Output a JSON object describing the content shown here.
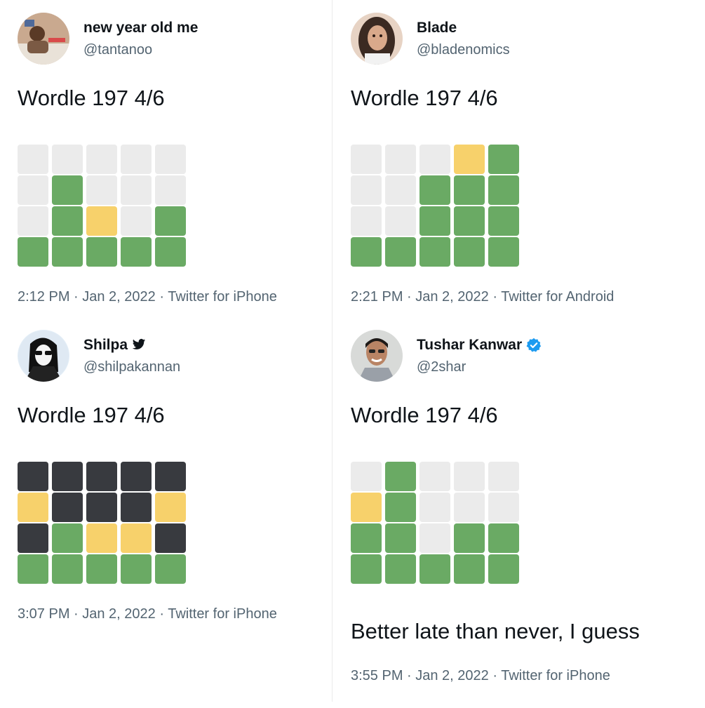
{
  "colors": {
    "green": "#6aaa64",
    "yellow": "#f7d16b",
    "gray": "#ebebeb",
    "dark": "#383a3f",
    "verified_blue": "#1d9bf0"
  },
  "tweets": [
    {
      "name": "new year old me",
      "handle": "@tantanoo",
      "verified": "none",
      "text": "Wordle 197 4/6",
      "meta": "2:12 PM · Jan 2, 2022 · Twitter for iPhone",
      "avatar_icon": "user-avatar-child",
      "grid": [
        [
          "gray",
          "gray",
          "gray",
          "gray",
          "gray"
        ],
        [
          "gray",
          "green",
          "gray",
          "gray",
          "gray"
        ],
        [
          "gray",
          "green",
          "yellow",
          "gray",
          "green"
        ],
        [
          "green",
          "green",
          "green",
          "green",
          "green"
        ]
      ]
    },
    {
      "name": "Blade",
      "handle": "@bladenomics",
      "verified": "none",
      "text": "Wordle 197 4/6",
      "meta": "2:21 PM · Jan 2, 2022 · Twitter for Android",
      "avatar_icon": "user-avatar-woman",
      "grid": [
        [
          "gray",
          "gray",
          "gray",
          "yellow",
          "green"
        ],
        [
          "gray",
          "gray",
          "green",
          "green",
          "green"
        ],
        [
          "gray",
          "gray",
          "green",
          "green",
          "green"
        ],
        [
          "green",
          "green",
          "green",
          "green",
          "green"
        ]
      ]
    },
    {
      "name": "Shilpa",
      "handle": "@shilpakannan",
      "verified": "twitter-bird",
      "text": "Wordle 197 4/6",
      "meta": "3:07 PM · Jan 2, 2022 · Twitter for iPhone",
      "avatar_icon": "user-avatar-sketch",
      "grid": [
        [
          "dark",
          "dark",
          "dark",
          "dark",
          "dark"
        ],
        [
          "yellow",
          "dark",
          "dark",
          "dark",
          "yellow"
        ],
        [
          "dark",
          "green",
          "yellow",
          "yellow",
          "dark"
        ],
        [
          "green",
          "green",
          "green",
          "green",
          "green"
        ]
      ]
    },
    {
      "name": "Tushar Kanwar",
      "handle": "@2shar",
      "verified": "blue-check",
      "text": "Wordle 197 4/6",
      "extra_text": "Better late than never, I guess",
      "meta": "3:55 PM · Jan 2, 2022 · Twitter for iPhone",
      "avatar_icon": "user-avatar-man",
      "grid": [
        [
          "gray",
          "green",
          "gray",
          "gray",
          "gray"
        ],
        [
          "yellow",
          "green",
          "gray",
          "gray",
          "gray"
        ],
        [
          "green",
          "green",
          "gray",
          "green",
          "green"
        ],
        [
          "green",
          "green",
          "green",
          "green",
          "green"
        ]
      ]
    }
  ]
}
